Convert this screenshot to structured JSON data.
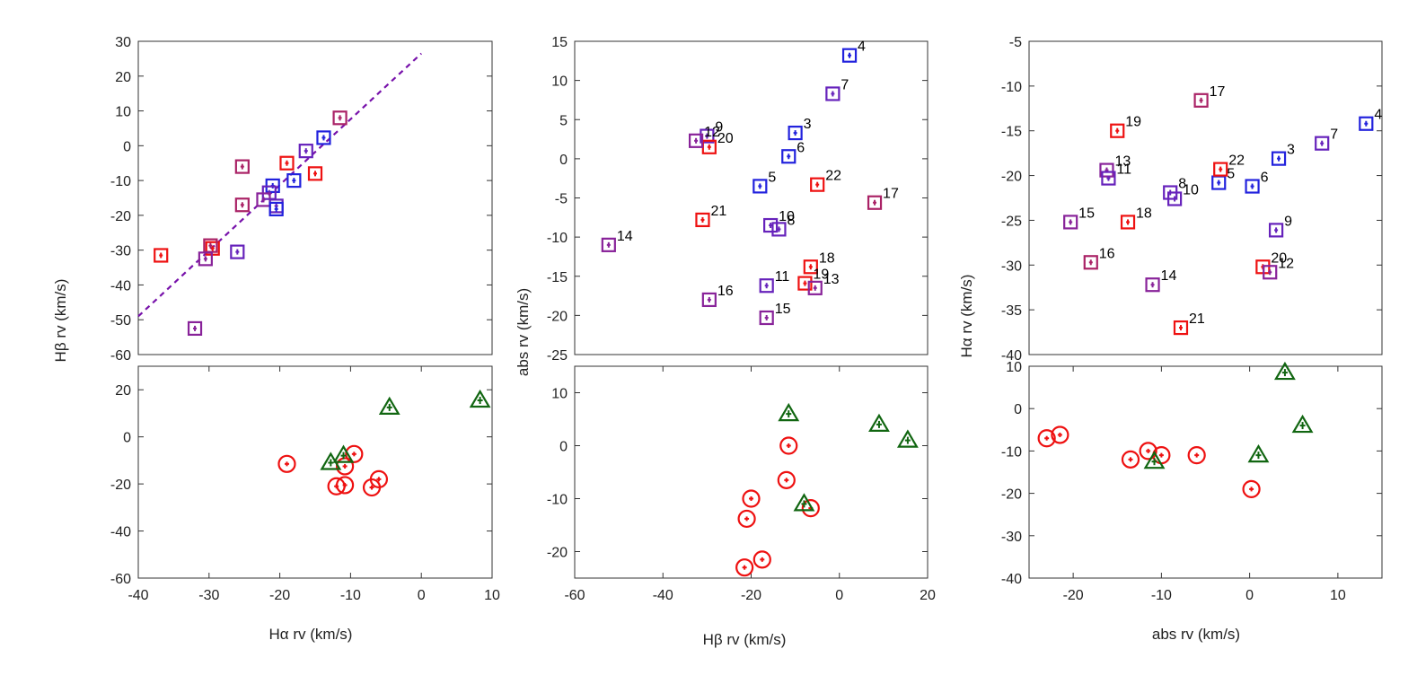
{
  "colors": {
    "blue": "#2222dd",
    "violet": "#6622bb",
    "purple": "#882299",
    "magenta": "#aa2266",
    "red": "#ee1111",
    "green": "#116611",
    "fitline": "#7711aa"
  },
  "chart_data": [
    {
      "type": "scatter",
      "panel": "left-top",
      "ylabel": "Hβ rv (km/s)",
      "xlim": [
        -40,
        10
      ],
      "ylim": [
        -60,
        30
      ],
      "yticks": [
        {
          "v": 30,
          "label": "30"
        },
        {
          "v": 20,
          "label": "20"
        },
        {
          "v": 10,
          "label": "10"
        },
        {
          "v": 0,
          "label": "0"
        },
        {
          "v": -10,
          "label": "-10"
        },
        {
          "v": -20,
          "label": "-20"
        },
        {
          "v": -30,
          "label": "-30"
        },
        {
          "v": -40,
          "label": "-40"
        },
        {
          "v": -50,
          "label": "-50"
        },
        {
          "v": -60,
          "label": "-60"
        }
      ],
      "line": {
        "x": [
          -40,
          0
        ],
        "y": [
          -49,
          26.5
        ]
      },
      "points": [
        {
          "x": -11.5,
          "y": 8,
          "c": "magenta"
        },
        {
          "x": -13.8,
          "y": 2.3,
          "c": "blue"
        },
        {
          "x": -16.3,
          "y": -1.5,
          "c": "violet"
        },
        {
          "x": -18,
          "y": -10,
          "c": "blue"
        },
        {
          "x": -19,
          "y": -5,
          "c": "red"
        },
        {
          "x": -15,
          "y": -8,
          "c": "red"
        },
        {
          "x": -25.3,
          "y": -6,
          "c": "magenta"
        },
        {
          "x": -21,
          "y": -11.5,
          "c": "blue"
        },
        {
          "x": -21.5,
          "y": -13.5,
          "c": "violet"
        },
        {
          "x": -22.3,
          "y": -15.5,
          "c": "purple"
        },
        {
          "x": -25.3,
          "y": -17,
          "c": "magenta"
        },
        {
          "x": -20.5,
          "y": -17.3,
          "c": "violet"
        },
        {
          "x": -20.5,
          "y": -18.2,
          "c": "blue"
        },
        {
          "x": -26,
          "y": -30.5,
          "c": "violet"
        },
        {
          "x": -29.5,
          "y": -29.5,
          "c": "red"
        },
        {
          "x": -29.8,
          "y": -28.7,
          "c": "magenta"
        },
        {
          "x": -30.5,
          "y": -32.5,
          "c": "purple"
        },
        {
          "x": -36.8,
          "y": -31.5,
          "c": "red"
        },
        {
          "x": -32,
          "y": -52.5,
          "c": "purple"
        }
      ]
    },
    {
      "type": "scatter",
      "panel": "left-bottom",
      "xlabel": "Hα rv (km/s)",
      "xlim": [
        -40,
        10
      ],
      "ylim": [
        -60,
        30
      ],
      "xticks": [
        {
          "v": -40,
          "label": "-40"
        },
        {
          "v": -30,
          "label": "-30"
        },
        {
          "v": -20,
          "label": "-20"
        },
        {
          "v": -10,
          "label": "-10"
        },
        {
          "v": 0,
          "label": "0"
        },
        {
          "v": 10,
          "label": "10"
        }
      ],
      "yticks": [
        {
          "v": 20,
          "label": "20"
        },
        {
          "v": 0,
          "label": "0"
        },
        {
          "v": -20,
          "label": "-20"
        },
        {
          "v": -40,
          "label": "-40"
        },
        {
          "v": -60,
          "label": "-60"
        }
      ],
      "points": [
        {
          "x": -19,
          "y": -11.5,
          "m": "circle"
        },
        {
          "x": -9.5,
          "y": -7.3,
          "m": "circle"
        },
        {
          "x": -10.8,
          "y": -12.5,
          "m": "circle"
        },
        {
          "x": -12,
          "y": -21,
          "m": "circle"
        },
        {
          "x": -10.8,
          "y": -20.5,
          "m": "circle"
        },
        {
          "x": -6,
          "y": -18,
          "m": "circle"
        },
        {
          "x": -7,
          "y": -21.5,
          "m": "circle"
        },
        {
          "x": 8.3,
          "y": 15.5,
          "m": "triangle"
        },
        {
          "x": -4.5,
          "y": 12.5,
          "m": "triangle"
        },
        {
          "x": -11,
          "y": -8,
          "m": "triangle"
        },
        {
          "x": -12.8,
          "y": -11,
          "m": "triangle"
        }
      ]
    },
    {
      "type": "scatter",
      "panel": "middle-top",
      "ylabel": "abs rv (km/s)",
      "xlim": [
        -60,
        20
      ],
      "ylim": [
        -25,
        15
      ],
      "yticks": [
        {
          "v": 15,
          "label": "15"
        },
        {
          "v": 10,
          "label": "10"
        },
        {
          "v": 5,
          "label": "5"
        },
        {
          "v": 0,
          "label": "0"
        },
        {
          "v": -5,
          "label": "-5"
        },
        {
          "v": -10,
          "label": "-10"
        },
        {
          "v": -15,
          "label": "-15"
        },
        {
          "v": -20,
          "label": "-20"
        },
        {
          "v": -25,
          "label": "-25"
        }
      ],
      "points": [
        {
          "x": 2.3,
          "y": 13.2,
          "c": "blue",
          "id": "4"
        },
        {
          "x": -1.5,
          "y": 8.3,
          "c": "violet",
          "id": "7"
        },
        {
          "x": -10,
          "y": 3.3,
          "c": "blue",
          "id": "3"
        },
        {
          "x": -11.5,
          "y": 0.3,
          "c": "blue",
          "id": "6"
        },
        {
          "x": -18,
          "y": -3.5,
          "c": "blue",
          "id": "5"
        },
        {
          "x": -5,
          "y": -3.3,
          "c": "red",
          "id": "22"
        },
        {
          "x": 8,
          "y": -5.6,
          "c": "magenta",
          "id": "17"
        },
        {
          "x": -31,
          "y": -7.8,
          "c": "red",
          "id": "21"
        },
        {
          "x": -15.6,
          "y": -8.5,
          "c": "violet",
          "id": "10"
        },
        {
          "x": -13.7,
          "y": -9,
          "c": "violet",
          "id": "8"
        },
        {
          "x": -52.3,
          "y": -11,
          "c": "purple",
          "id": "14"
        },
        {
          "x": -6.5,
          "y": -13.8,
          "c": "red",
          "id": "18"
        },
        {
          "x": -7.8,
          "y": -15.9,
          "c": "red",
          "id": "19"
        },
        {
          "x": -5.5,
          "y": -16.5,
          "c": "purple",
          "id": "13"
        },
        {
          "x": -16.5,
          "y": -16.2,
          "c": "violet",
          "id": "11"
        },
        {
          "x": -29.5,
          "y": -18,
          "c": "purple",
          "id": "16"
        },
        {
          "x": -16.5,
          "y": -20.3,
          "c": "purple",
          "id": "15"
        },
        {
          "x": -30,
          "y": 2.9,
          "c": "violet",
          "id": "9"
        },
        {
          "x": -29.5,
          "y": 1.5,
          "c": "red",
          "id": "20"
        },
        {
          "x": -32.5,
          "y": 2.3,
          "c": "purple",
          "id": "12"
        }
      ]
    },
    {
      "type": "scatter",
      "panel": "middle-bottom",
      "xlabel": "Hβ rv (km/s)",
      "xlim": [
        -60,
        20
      ],
      "ylim": [
        -25,
        15
      ],
      "xticks": [
        {
          "v": -60,
          "label": "-60"
        },
        {
          "v": -40,
          "label": "-40"
        },
        {
          "v": -20,
          "label": "-20"
        },
        {
          "v": 0,
          "label": "0"
        },
        {
          "v": 20,
          "label": "20"
        }
      ],
      "yticks": [
        {
          "v": 10,
          "label": "10"
        },
        {
          "v": 0,
          "label": "0"
        },
        {
          "v": -10,
          "label": "-10"
        },
        {
          "v": -20,
          "label": "-20"
        }
      ],
      "points": [
        {
          "x": -11.5,
          "y": 0,
          "m": "circle"
        },
        {
          "x": -12,
          "y": -6.5,
          "m": "circle"
        },
        {
          "x": -20,
          "y": -10,
          "m": "circle"
        },
        {
          "x": -21,
          "y": -13.8,
          "m": "circle"
        },
        {
          "x": -6.5,
          "y": -11.8,
          "m": "circle"
        },
        {
          "x": -17.5,
          "y": -21.5,
          "m": "circle"
        },
        {
          "x": -21.5,
          "y": -23,
          "m": "circle"
        },
        {
          "x": -11.5,
          "y": 6,
          "m": "triangle"
        },
        {
          "x": 9,
          "y": 4,
          "m": "triangle"
        },
        {
          "x": 15.5,
          "y": 1,
          "m": "triangle"
        },
        {
          "x": -8,
          "y": -11,
          "m": "triangle"
        }
      ]
    },
    {
      "type": "scatter",
      "panel": "right-top",
      "ylabel": "Hα rv (km/s)",
      "xlim": [
        -25,
        15
      ],
      "ylim": [
        -40,
        -5
      ],
      "yticks": [
        {
          "v": -5,
          "label": "-5"
        },
        {
          "v": -10,
          "label": "-10"
        },
        {
          "v": -15,
          "label": "-15"
        },
        {
          "v": -20,
          "label": "-20"
        },
        {
          "v": -25,
          "label": "-25"
        },
        {
          "v": -30,
          "label": "-30"
        },
        {
          "v": -35,
          "label": "-35"
        },
        {
          "v": -40,
          "label": "-40"
        }
      ],
      "points": [
        {
          "x": 13.2,
          "y": -14.2,
          "c": "blue",
          "id": "4"
        },
        {
          "x": 8.2,
          "y": -16.4,
          "c": "violet",
          "id": "7"
        },
        {
          "x": 3.3,
          "y": -18.1,
          "c": "blue",
          "id": "3"
        },
        {
          "x": 0.3,
          "y": -21.2,
          "c": "blue",
          "id": "6"
        },
        {
          "x": -3.5,
          "y": -20.8,
          "c": "blue",
          "id": "5"
        },
        {
          "x": -3.3,
          "y": -19.3,
          "c": "red",
          "id": "22"
        },
        {
          "x": -5.5,
          "y": -11.6,
          "c": "magenta",
          "id": "17"
        },
        {
          "x": -15,
          "y": -15,
          "c": "red",
          "id": "19"
        },
        {
          "x": -16.2,
          "y": -19.4,
          "c": "purple",
          "id": "13"
        },
        {
          "x": -16,
          "y": -20.3,
          "c": "violet",
          "id": "11"
        },
        {
          "x": -9,
          "y": -21.9,
          "c": "violet",
          "id": "8"
        },
        {
          "x": -8.5,
          "y": -22.6,
          "c": "violet",
          "id": "10"
        },
        {
          "x": -20.3,
          "y": -25.2,
          "c": "purple",
          "id": "15"
        },
        {
          "x": -13.8,
          "y": -25.2,
          "c": "red",
          "id": "18"
        },
        {
          "x": 3,
          "y": -26.1,
          "c": "violet",
          "id": "9"
        },
        {
          "x": -18,
          "y": -29.7,
          "c": "magenta",
          "id": "16"
        },
        {
          "x": 1.5,
          "y": -30.2,
          "c": "red",
          "id": "20"
        },
        {
          "x": 2.3,
          "y": -30.8,
          "c": "purple",
          "id": "12"
        },
        {
          "x": -11,
          "y": -32.2,
          "c": "purple",
          "id": "14"
        },
        {
          "x": -7.8,
          "y": -37,
          "c": "red",
          "id": "21"
        }
      ]
    },
    {
      "type": "scatter",
      "panel": "right-bottom",
      "xlabel": "abs rv (km/s)",
      "xlim": [
        -25,
        15
      ],
      "ylim": [
        -40,
        10
      ],
      "xticks": [
        {
          "v": -20,
          "label": "-20"
        },
        {
          "v": -10,
          "label": "-10"
        },
        {
          "v": 0,
          "label": "0"
        },
        {
          "v": 10,
          "label": "10"
        }
      ],
      "yticks": [
        {
          "v": 10,
          "label": "10"
        },
        {
          "v": 0,
          "label": "0"
        },
        {
          "v": -10,
          "label": "-10"
        },
        {
          "v": -20,
          "label": "-20"
        },
        {
          "v": -30,
          "label": "-30"
        },
        {
          "v": -40,
          "label": "-40"
        }
      ],
      "points": [
        {
          "x": -23,
          "y": -7,
          "m": "circle"
        },
        {
          "x": -21.5,
          "y": -6.2,
          "m": "circle"
        },
        {
          "x": -13.5,
          "y": -12,
          "m": "circle"
        },
        {
          "x": -11.5,
          "y": -10,
          "m": "circle"
        },
        {
          "x": -10,
          "y": -11,
          "m": "circle"
        },
        {
          "x": -6,
          "y": -11,
          "m": "circle"
        },
        {
          "x": 0.2,
          "y": -19,
          "m": "circle"
        },
        {
          "x": 4,
          "y": 8.5,
          "m": "triangle"
        },
        {
          "x": 6,
          "y": -4,
          "m": "triangle"
        },
        {
          "x": 1,
          "y": -11,
          "m": "triangle"
        },
        {
          "x": -10.8,
          "y": -12.5,
          "m": "triangle"
        }
      ]
    }
  ]
}
